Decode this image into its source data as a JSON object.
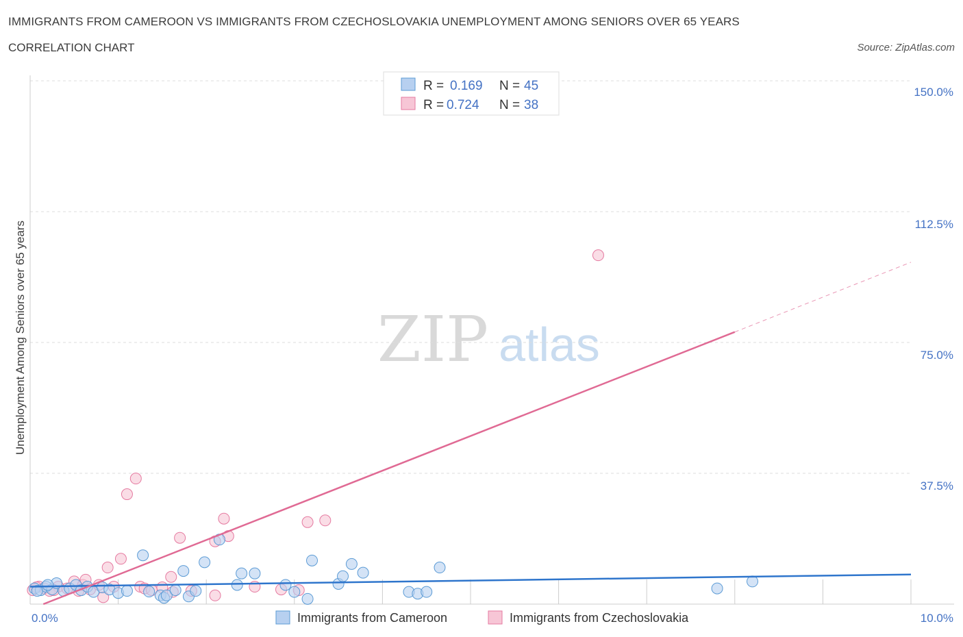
{
  "header": {
    "title": "IMMIGRANTS FROM CAMEROON VS IMMIGRANTS FROM CZECHOSLOVAKIA UNEMPLOYMENT AMONG SENIORS OVER 65 YEARS",
    "subtitle": "CORRELATION CHART",
    "source": "Source: ZipAtlas.com"
  },
  "watermark": {
    "zip": "ZIP",
    "atlas": "atlas"
  },
  "legend_top": [
    {
      "r_label": "R =",
      "r_value": "0.169",
      "n_label": "N =",
      "n_value": "45"
    },
    {
      "r_label": "R =",
      "r_value": "0.724",
      "n_label": "N =",
      "n_value": "38"
    }
  ],
  "colors": {
    "cameroon": "#5b9bd5",
    "cameroon_fill": "#b7d0f0",
    "cameroon_line": "#2e75cc",
    "czech": "#e57aa0",
    "czech_fill": "#f7c6d6",
    "czech_line": "#e06a94",
    "value_text": "#4472c4"
  },
  "chart_data": {
    "type": "scatter",
    "title": "IMMIGRANTS FROM CAMEROON VS IMMIGRANTS FROM CZECHOSLOVAKIA UNEMPLOYMENT AMONG SENIORS OVER 65 YEARS",
    "xlabel": "",
    "ylabel": "Unemployment Among Seniors over 65 years",
    "xlim": [
      0,
      10
    ],
    "ylim": [
      0,
      150
    ],
    "x_tick_labels": [
      "0.0%",
      "10.0%"
    ],
    "y_ticks": [
      37.5,
      75,
      112.5,
      150
    ],
    "y_tick_labels": [
      "37.5%",
      "75.0%",
      "112.5%",
      "150.0%"
    ],
    "grid": true,
    "legend_position": "top-center",
    "series": [
      {
        "name": "Immigrants from Cameroon",
        "R": 0.169,
        "N": 45,
        "trend": {
          "x": [
            0,
            10
          ],
          "y": [
            5.0,
            8.5
          ],
          "dashed_from": null
        },
        "points": [
          [
            0.05,
            4.5
          ],
          [
            0.12,
            4.0
          ],
          [
            0.18,
            5.0
          ],
          [
            0.25,
            4.2
          ],
          [
            0.3,
            6.0
          ],
          [
            0.38,
            3.8
          ],
          [
            0.45,
            4.5
          ],
          [
            0.52,
            5.5
          ],
          [
            0.58,
            4.0
          ],
          [
            0.65,
            5.0
          ],
          [
            0.72,
            3.5
          ],
          [
            0.82,
            4.8
          ],
          [
            0.9,
            4.2
          ],
          [
            1.0,
            3.2
          ],
          [
            1.1,
            3.8
          ],
          [
            1.28,
            14.0
          ],
          [
            1.35,
            3.6
          ],
          [
            1.48,
            2.5
          ],
          [
            1.52,
            1.8
          ],
          [
            1.55,
            2.5
          ],
          [
            1.65,
            4.0
          ],
          [
            1.74,
            9.5
          ],
          [
            1.8,
            2.2
          ],
          [
            1.88,
            3.8
          ],
          [
            1.98,
            12.0
          ],
          [
            2.15,
            18.5
          ],
          [
            2.35,
            5.5
          ],
          [
            2.4,
            8.8
          ],
          [
            2.55,
            8.8
          ],
          [
            2.9,
            5.5
          ],
          [
            3.0,
            3.5
          ],
          [
            3.15,
            1.5
          ],
          [
            3.2,
            12.5
          ],
          [
            3.5,
            5.8
          ],
          [
            3.55,
            8.0
          ],
          [
            3.65,
            11.5
          ],
          [
            3.78,
            9.0
          ],
          [
            4.3,
            3.5
          ],
          [
            4.4,
            3.0
          ],
          [
            4.5,
            3.5
          ],
          [
            4.65,
            10.5
          ],
          [
            7.8,
            4.5
          ],
          [
            8.2,
            6.5
          ],
          [
            0.2,
            5.5
          ],
          [
            0.08,
            3.8
          ]
        ]
      },
      {
        "name": "Immigrants from Czechoslovakia",
        "R": 0.724,
        "N": 38,
        "trend": {
          "x": [
            0.15,
            8.0
          ],
          "y": [
            0,
            78
          ],
          "dashed_to": {
            "x": 10,
            "y": 98
          }
        },
        "points": [
          [
            0.03,
            4.0
          ],
          [
            0.1,
            5.0
          ],
          [
            0.16,
            4.5
          ],
          [
            0.22,
            3.8
          ],
          [
            0.32,
            5.0
          ],
          [
            0.42,
            4.5
          ],
          [
            0.5,
            6.5
          ],
          [
            0.55,
            3.8
          ],
          [
            0.6,
            5.5
          ],
          [
            0.63,
            7.0
          ],
          [
            0.68,
            4.2
          ],
          [
            0.78,
            5.5
          ],
          [
            0.83,
            2.0
          ],
          [
            0.88,
            10.5
          ],
          [
            0.95,
            5.0
          ],
          [
            1.03,
            13.0
          ],
          [
            1.1,
            31.5
          ],
          [
            1.2,
            36.0
          ],
          [
            1.25,
            5.0
          ],
          [
            1.3,
            4.5
          ],
          [
            1.38,
            4.0
          ],
          [
            1.5,
            4.8
          ],
          [
            1.6,
            7.8
          ],
          [
            1.62,
            3.5
          ],
          [
            1.7,
            19.0
          ],
          [
            1.83,
            3.8
          ],
          [
            2.1,
            2.5
          ],
          [
            2.1,
            18.0
          ],
          [
            2.2,
            24.5
          ],
          [
            2.25,
            19.5
          ],
          [
            2.55,
            5.0
          ],
          [
            2.85,
            4.2
          ],
          [
            3.05,
            4.0
          ],
          [
            3.15,
            23.5
          ],
          [
            3.35,
            24.0
          ],
          [
            6.45,
            100.0
          ],
          [
            0.07,
            4.8
          ],
          [
            0.27,
            4.0
          ]
        ]
      }
    ]
  },
  "bottom_legend": [
    {
      "label": "Immigrants from Cameroon"
    },
    {
      "label": "Immigrants from Czechoslovakia"
    }
  ]
}
